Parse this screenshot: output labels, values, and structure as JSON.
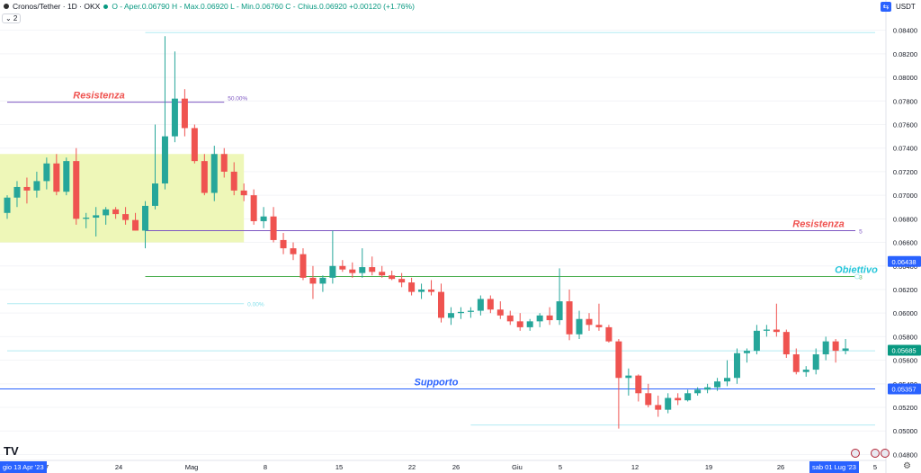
{
  "header": {
    "symbol": "Cronos/Tether · 1D · OKX",
    "ohlc": "O - Aper.0.06790  H - Max.0.06920  L - Min.0.06760  C - Chius.0.06920  +0.00120 (+1.76%)",
    "collapse_label": "⌄ 2",
    "currency": "USDT",
    "currency_button": "⇆"
  },
  "logo": "TV",
  "time_axis": {
    "ticks": [
      "17",
      "24",
      "Mag",
      "8",
      "15",
      "22",
      "26",
      "Giu",
      "5",
      "12",
      "19",
      "26",
      "5"
    ],
    "start_label": "gio 13 Apr '23",
    "end_label": "sab 01 Lug '23"
  },
  "price_axis": {
    "ticks": [
      "0.08400",
      "0.08200",
      "0.08000",
      "0.07800",
      "0.07600",
      "0.07400",
      "0.07200",
      "0.07000",
      "0.06800",
      "0.06600",
      "0.06400",
      "0.06200",
      "0.06000",
      "0.05800",
      "0.05600",
      "0.05400",
      "0.05200",
      "0.05000",
      "0.04800"
    ],
    "badges": [
      {
        "label": "0.06438",
        "value": 0.06438,
        "color": "#2962ff"
      },
      {
        "label": "0.05685",
        "value": 0.05685,
        "color": "#089981"
      },
      {
        "label": "0.05357",
        "value": 0.05357,
        "color": "#2962ff"
      }
    ]
  },
  "colors": {
    "up": "#26a69a",
    "down": "#ef5350",
    "zone": "#eef7b8",
    "resist": "#7e57c2",
    "support": "#2962ff",
    "target": "#4caf50",
    "fib": "#b2ebf2"
  },
  "chart_data": {
    "type": "candlestick",
    "title": "Cronos/Tether · 1D · OKX",
    "ylim": [
      0.0475,
      0.0855
    ],
    "x_range": [
      "2023-04-09",
      "2023-07-06"
    ],
    "candles": [
      {
        "d": "2023-04-09",
        "o": 0.0685,
        "h": 0.07,
        "l": 0.068,
        "c": 0.0698
      },
      {
        "d": "2023-04-10",
        "o": 0.0698,
        "h": 0.0712,
        "l": 0.069,
        "c": 0.0707
      },
      {
        "d": "2023-04-11",
        "o": 0.0707,
        "h": 0.0715,
        "l": 0.0693,
        "c": 0.0704
      },
      {
        "d": "2023-04-12",
        "o": 0.0704,
        "h": 0.072,
        "l": 0.0698,
        "c": 0.0712
      },
      {
        "d": "2023-04-13",
        "o": 0.0712,
        "h": 0.0732,
        "l": 0.0705,
        "c": 0.0727
      },
      {
        "d": "2023-04-14",
        "o": 0.0727,
        "h": 0.0735,
        "l": 0.07,
        "c": 0.0703
      },
      {
        "d": "2023-04-15",
        "o": 0.0703,
        "h": 0.0732,
        "l": 0.07,
        "c": 0.0729
      },
      {
        "d": "2023-04-16",
        "o": 0.0729,
        "h": 0.074,
        "l": 0.0675,
        "c": 0.068
      },
      {
        "d": "2023-04-17",
        "o": 0.068,
        "h": 0.0685,
        "l": 0.0672,
        "c": 0.0681
      },
      {
        "d": "2023-04-18",
        "o": 0.0681,
        "h": 0.069,
        "l": 0.0665,
        "c": 0.0683
      },
      {
        "d": "2023-04-19",
        "o": 0.0683,
        "h": 0.069,
        "l": 0.0675,
        "c": 0.0688
      },
      {
        "d": "2023-04-20",
        "o": 0.0688,
        "h": 0.069,
        "l": 0.068,
        "c": 0.0684
      },
      {
        "d": "2023-04-21",
        "o": 0.0684,
        "h": 0.069,
        "l": 0.0675,
        "c": 0.0679
      },
      {
        "d": "2023-04-22",
        "o": 0.0679,
        "h": 0.0685,
        "l": 0.067,
        "c": 0.067
      },
      {
        "d": "2023-04-23",
        "o": 0.067,
        "h": 0.0695,
        "l": 0.0655,
        "c": 0.0691
      },
      {
        "d": "2023-04-24",
        "o": 0.0691,
        "h": 0.076,
        "l": 0.0688,
        "c": 0.071
      },
      {
        "d": "2023-04-25",
        "o": 0.071,
        "h": 0.0835,
        "l": 0.0705,
        "c": 0.075
      },
      {
        "d": "2023-04-26",
        "o": 0.075,
        "h": 0.0822,
        "l": 0.0745,
        "c": 0.0782
      },
      {
        "d": "2023-04-27",
        "o": 0.0782,
        "h": 0.079,
        "l": 0.075,
        "c": 0.0757
      },
      {
        "d": "2023-04-28",
        "o": 0.0757,
        "h": 0.076,
        "l": 0.0727,
        "c": 0.0729
      },
      {
        "d": "2023-04-29",
        "o": 0.0729,
        "h": 0.0735,
        "l": 0.07,
        "c": 0.0702
      },
      {
        "d": "2023-04-30",
        "o": 0.0702,
        "h": 0.0742,
        "l": 0.0695,
        "c": 0.0735
      },
      {
        "d": "2023-05-01",
        "o": 0.0735,
        "h": 0.074,
        "l": 0.0715,
        "c": 0.072
      },
      {
        "d": "2023-05-02",
        "o": 0.072,
        "h": 0.0728,
        "l": 0.07,
        "c": 0.0704
      },
      {
        "d": "2023-05-03",
        "o": 0.0704,
        "h": 0.071,
        "l": 0.0695,
        "c": 0.07
      },
      {
        "d": "2023-05-04",
        "o": 0.07,
        "h": 0.0705,
        "l": 0.0675,
        "c": 0.0678
      },
      {
        "d": "2023-05-05",
        "o": 0.0678,
        "h": 0.069,
        "l": 0.0672,
        "c": 0.0682
      },
      {
        "d": "2023-05-06",
        "o": 0.0682,
        "h": 0.069,
        "l": 0.066,
        "c": 0.0662
      },
      {
        "d": "2023-05-07",
        "o": 0.0662,
        "h": 0.0668,
        "l": 0.065,
        "c": 0.0655
      },
      {
        "d": "2023-05-08",
        "o": 0.0655,
        "h": 0.066,
        "l": 0.0645,
        "c": 0.065
      },
      {
        "d": "2023-05-09",
        "o": 0.065,
        "h": 0.0655,
        "l": 0.0628,
        "c": 0.063
      },
      {
        "d": "2023-05-10",
        "o": 0.063,
        "h": 0.064,
        "l": 0.0612,
        "c": 0.0625
      },
      {
        "d": "2023-05-11",
        "o": 0.0625,
        "h": 0.0632,
        "l": 0.0618,
        "c": 0.063
      },
      {
        "d": "2023-05-12",
        "o": 0.063,
        "h": 0.067,
        "l": 0.0625,
        "c": 0.064
      },
      {
        "d": "2023-05-13",
        "o": 0.064,
        "h": 0.0645,
        "l": 0.0635,
        "c": 0.0637
      },
      {
        "d": "2023-05-14",
        "o": 0.0637,
        "h": 0.0643,
        "l": 0.063,
        "c": 0.0634
      },
      {
        "d": "2023-05-15",
        "o": 0.0634,
        "h": 0.0655,
        "l": 0.063,
        "c": 0.0639
      },
      {
        "d": "2023-05-16",
        "o": 0.0639,
        "h": 0.0648,
        "l": 0.0632,
        "c": 0.0635
      },
      {
        "d": "2023-05-17",
        "o": 0.0635,
        "h": 0.064,
        "l": 0.063,
        "c": 0.0632
      },
      {
        "d": "2023-05-18",
        "o": 0.0632,
        "h": 0.0636,
        "l": 0.0628,
        "c": 0.0629
      },
      {
        "d": "2023-05-19",
        "o": 0.0629,
        "h": 0.0634,
        "l": 0.0622,
        "c": 0.0626
      },
      {
        "d": "2023-05-20",
        "o": 0.0626,
        "h": 0.063,
        "l": 0.0615,
        "c": 0.0618
      },
      {
        "d": "2023-05-21",
        "o": 0.0618,
        "h": 0.0625,
        "l": 0.0612,
        "c": 0.062
      },
      {
        "d": "2023-05-22",
        "o": 0.062,
        "h": 0.0628,
        "l": 0.0615,
        "c": 0.0618
      },
      {
        "d": "2023-05-23",
        "o": 0.0618,
        "h": 0.0625,
        "l": 0.0592,
        "c": 0.0596
      },
      {
        "d": "2023-05-24",
        "o": 0.0596,
        "h": 0.0605,
        "l": 0.059,
        "c": 0.06
      },
      {
        "d": "2023-05-25",
        "o": 0.06,
        "h": 0.0605,
        "l": 0.0595,
        "c": 0.0601
      },
      {
        "d": "2023-05-26",
        "o": 0.0601,
        "h": 0.0605,
        "l": 0.0596,
        "c": 0.0602
      },
      {
        "d": "2023-05-27",
        "o": 0.0602,
        "h": 0.0615,
        "l": 0.0598,
        "c": 0.0612
      },
      {
        "d": "2023-05-28",
        "o": 0.0612,
        "h": 0.0615,
        "l": 0.06,
        "c": 0.0603
      },
      {
        "d": "2023-05-29",
        "o": 0.0603,
        "h": 0.061,
        "l": 0.0595,
        "c": 0.0598
      },
      {
        "d": "2023-05-30",
        "o": 0.0598,
        "h": 0.0602,
        "l": 0.059,
        "c": 0.0593
      },
      {
        "d": "2023-05-31",
        "o": 0.0593,
        "h": 0.06,
        "l": 0.0585,
        "c": 0.0588
      },
      {
        "d": "2023-06-01",
        "o": 0.0588,
        "h": 0.0595,
        "l": 0.0585,
        "c": 0.0593
      },
      {
        "d": "2023-06-02",
        "o": 0.0593,
        "h": 0.06,
        "l": 0.0588,
        "c": 0.0598
      },
      {
        "d": "2023-06-03",
        "o": 0.0598,
        "h": 0.0605,
        "l": 0.059,
        "c": 0.0594
      },
      {
        "d": "2023-06-04",
        "o": 0.0594,
        "h": 0.0638,
        "l": 0.059,
        "c": 0.061
      },
      {
        "d": "2023-06-05",
        "o": 0.061,
        "h": 0.062,
        "l": 0.0577,
        "c": 0.0582
      },
      {
        "d": "2023-06-06",
        "o": 0.0582,
        "h": 0.0602,
        "l": 0.0578,
        "c": 0.0595
      },
      {
        "d": "2023-06-07",
        "o": 0.0595,
        "h": 0.06,
        "l": 0.0585,
        "c": 0.059
      },
      {
        "d": "2023-06-08",
        "o": 0.059,
        "h": 0.0608,
        "l": 0.0585,
        "c": 0.0588
      },
      {
        "d": "2023-06-09",
        "o": 0.0588,
        "h": 0.059,
        "l": 0.0575,
        "c": 0.0576
      },
      {
        "d": "2023-06-10",
        "o": 0.0576,
        "h": 0.0578,
        "l": 0.0502,
        "c": 0.0545
      },
      {
        "d": "2023-06-11",
        "o": 0.0545,
        "h": 0.0553,
        "l": 0.053,
        "c": 0.0547
      },
      {
        "d": "2023-06-12",
        "o": 0.0547,
        "h": 0.0548,
        "l": 0.0525,
        "c": 0.0532
      },
      {
        "d": "2023-06-13",
        "o": 0.0532,
        "h": 0.054,
        "l": 0.052,
        "c": 0.0522
      },
      {
        "d": "2023-06-14",
        "o": 0.0522,
        "h": 0.053,
        "l": 0.0512,
        "c": 0.0518
      },
      {
        "d": "2023-06-15",
        "o": 0.0518,
        "h": 0.0532,
        "l": 0.0515,
        "c": 0.0528
      },
      {
        "d": "2023-06-16",
        "o": 0.0528,
        "h": 0.0532,
        "l": 0.0522,
        "c": 0.0526
      },
      {
        "d": "2023-06-17",
        "o": 0.0526,
        "h": 0.0535,
        "l": 0.0525,
        "c": 0.0532
      },
      {
        "d": "2023-06-18",
        "o": 0.0532,
        "h": 0.0537,
        "l": 0.053,
        "c": 0.0535
      },
      {
        "d": "2023-06-19",
        "o": 0.0535,
        "h": 0.054,
        "l": 0.0532,
        "c": 0.0537
      },
      {
        "d": "2023-06-20",
        "o": 0.0537,
        "h": 0.0545,
        "l": 0.0534,
        "c": 0.0542
      },
      {
        "d": "2023-06-21",
        "o": 0.0542,
        "h": 0.056,
        "l": 0.0538,
        "c": 0.0545
      },
      {
        "d": "2023-06-22",
        "o": 0.0545,
        "h": 0.057,
        "l": 0.054,
        "c": 0.0566
      },
      {
        "d": "2023-06-23",
        "o": 0.0566,
        "h": 0.057,
        "l": 0.0558,
        "c": 0.0568
      },
      {
        "d": "2023-06-24",
        "o": 0.0568,
        "h": 0.059,
        "l": 0.0565,
        "c": 0.0585
      },
      {
        "d": "2023-06-25",
        "o": 0.0585,
        "h": 0.059,
        "l": 0.058,
        "c": 0.0586
      },
      {
        "d": "2023-06-26",
        "o": 0.0586,
        "h": 0.0608,
        "l": 0.058,
        "c": 0.0584
      },
      {
        "d": "2023-06-27",
        "o": 0.0584,
        "h": 0.0586,
        "l": 0.0562,
        "c": 0.0565
      },
      {
        "d": "2023-06-28",
        "o": 0.0565,
        "h": 0.057,
        "l": 0.0548,
        "c": 0.055
      },
      {
        "d": "2023-06-29",
        "o": 0.055,
        "h": 0.0555,
        "l": 0.0546,
        "c": 0.0552
      },
      {
        "d": "2023-06-30",
        "o": 0.0552,
        "h": 0.057,
        "l": 0.0548,
        "c": 0.0565
      },
      {
        "d": "2023-07-01",
        "o": 0.0565,
        "h": 0.058,
        "l": 0.056,
        "c": 0.0576
      },
      {
        "d": "2023-07-02",
        "o": 0.0576,
        "h": 0.0578,
        "l": 0.0558,
        "c": 0.0568
      },
      {
        "d": "2023-07-03",
        "o": 0.0568,
        "h": 0.0578,
        "l": 0.0565,
        "c": 0.057
      }
    ],
    "annotations": [
      {
        "type": "zone",
        "label": "",
        "x_start": "2023-04-09",
        "x_end": "2023-05-03",
        "y_low": 0.066,
        "y_high": 0.0735
      },
      {
        "type": "hline",
        "label": "Resistenza",
        "x_start": "2023-04-09",
        "x_end": "2023-05-01",
        "y": 0.0779,
        "level_label": "50.00%"
      },
      {
        "type": "hline",
        "label": "Resistenza",
        "x_start": "2023-04-23",
        "x_end": "2023-07-04",
        "y": 0.067,
        "level_label": "5"
      },
      {
        "type": "hline",
        "label": "Obiettivo",
        "x_start": "2023-04-23",
        "x_end": "2023-07-04",
        "y": 0.0631,
        "level_label": "3"
      },
      {
        "type": "hline",
        "label": "Supporto",
        "x_start": "2023-04-09",
        "x_end": "2023-07-06",
        "y": 0.05357,
        "level_label": ""
      },
      {
        "type": "fib",
        "label": "0.00%",
        "x_start": "2023-04-09",
        "x_end": "2023-05-03",
        "y": 0.0608
      },
      {
        "type": "fib",
        "label": "",
        "x_start": "2023-04-23",
        "x_end": "2023-07-06",
        "y": 0.0838
      },
      {
        "type": "fib",
        "label": "",
        "x_start": "2023-04-09",
        "x_end": "2023-07-06",
        "y": 0.0568
      },
      {
        "type": "fib",
        "label": "",
        "x_start": "2023-05-26",
        "x_end": "2023-07-06",
        "y": 0.0505
      }
    ]
  }
}
